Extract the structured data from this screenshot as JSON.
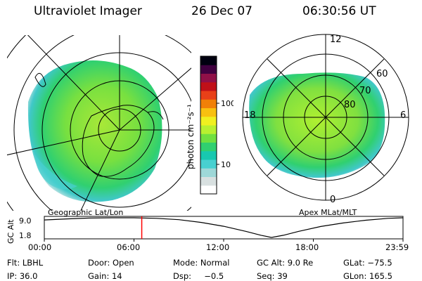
{
  "header": {
    "instrument": "Ultraviolet Imager",
    "date": "26 Dec 07",
    "time": "06:30:56 UT"
  },
  "geo_panel": {
    "label": "Geographic Lat/Lon"
  },
  "mag_panel": {
    "label": "Apex MLat/MLT",
    "mlt_labels": {
      "top": "12",
      "right": "6",
      "bottom": "0",
      "left": "18"
    },
    "mlat_labels": [
      "60",
      "70",
      "80"
    ]
  },
  "colorbar": {
    "unit_label": "photon cm⁻²s⁻¹",
    "ticks": [
      "100",
      "10"
    ],
    "colors": [
      "#ffffff",
      "#d8e0e0",
      "#9ed8d8",
      "#48d0d0",
      "#18c8b0",
      "#30d070",
      "#70e040",
      "#b8f030",
      "#f0f020",
      "#f8c010",
      "#f08008",
      "#e84018",
      "#c01018",
      "#901048",
      "#400040",
      "#000010"
    ]
  },
  "altitude_plot": {
    "ylabel": "GC Alt",
    "yticks": [
      "9.0",
      "1.8"
    ],
    "xticks": [
      "00:00",
      "06:00",
      "12:00",
      "18:00",
      "23:59"
    ],
    "current_time_hours": 6.52,
    "marker_color": "#ff0000",
    "curve": [
      [
        0,
        8.2
      ],
      [
        1.5,
        8.6
      ],
      [
        3,
        8.9
      ],
      [
        4.5,
        9.0
      ],
      [
        6,
        9.0
      ],
      [
        7.5,
        8.8
      ],
      [
        9,
        8.3
      ],
      [
        10.5,
        7.3
      ],
      [
        12,
        5.9
      ],
      [
        13.5,
        4.0
      ],
      [
        14.5,
        2.6
      ],
      [
        15.2,
        1.8
      ],
      [
        16,
        2.6
      ],
      [
        17,
        4.0
      ],
      [
        18.5,
        5.8
      ],
      [
        20,
        7.1
      ],
      [
        21.5,
        8.1
      ],
      [
        23,
        8.8
      ],
      [
        24,
        9.0
      ]
    ]
  },
  "info": {
    "filter": "Flt: LBHL",
    "door": "Door: Open",
    "mode": "Mode: Normal",
    "gc_alt": "GC Alt: 9.0 Re",
    "glat": "GLat: −75.5",
    "ip": "IP: 36.0",
    "gain": "Gain: 14",
    "dsp": "Dsp:     −0.5",
    "seq": "Seq: 39",
    "glon": "GLon: 165.5"
  }
}
